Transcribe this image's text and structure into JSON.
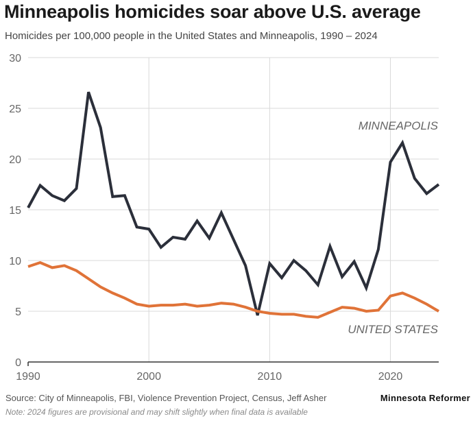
{
  "header": {
    "title": "Minneapolis homicides soar above U.S. average",
    "subtitle": "Homicides per 100,000 people in the United States and Minneapolis, 1990 – 2024"
  },
  "footer": {
    "source": "Source: City of Minneapolis, FBI, Violence Prevention Project, Census, Jeff Asher",
    "note": "Note: 2024 figures are provisional and may shift slightly when final data is available",
    "brand": "Minnesota Reformer"
  },
  "colors": {
    "minneapolis": "#2b2f3a",
    "united_states": "#e07338",
    "grid": "#d9d9d9",
    "axis": "#333333",
    "tick_text": "#666666"
  },
  "chart_data": {
    "type": "line",
    "title": "Minneapolis homicides soar above U.S. average",
    "subtitle": "Homicides per 100,000 people in the United States and Minneapolis, 1990 – 2024",
    "xlabel": "",
    "ylabel": "",
    "xlim": [
      1990,
      2024
    ],
    "ylim": [
      0,
      30
    ],
    "grid": true,
    "x_ticks": [
      "1990",
      "2000",
      "2010",
      "2020"
    ],
    "y_ticks": [
      "0",
      "5",
      "10",
      "15",
      "20",
      "25",
      "30"
    ],
    "x": [
      1990,
      1991,
      1992,
      1993,
      1994,
      1995,
      1996,
      1997,
      1998,
      1999,
      2000,
      2001,
      2002,
      2003,
      2004,
      2005,
      2006,
      2007,
      2008,
      2009,
      2010,
      2011,
      2012,
      2013,
      2014,
      2015,
      2016,
      2017,
      2018,
      2019,
      2020,
      2021,
      2022,
      2023,
      2024
    ],
    "series": [
      {
        "name": "MINNEAPOLIS",
        "values": [
          15.2,
          17.4,
          16.4,
          15.9,
          17.1,
          26.6,
          23.1,
          16.3,
          16.4,
          13.3,
          13.1,
          11.3,
          12.3,
          12.1,
          13.9,
          12.2,
          14.7,
          12.1,
          9.5,
          4.6,
          9.7,
          8.3,
          10.0,
          9.0,
          7.6,
          11.4,
          8.4,
          9.9,
          7.3,
          11.1,
          19.7,
          21.6,
          18.1,
          16.6,
          17.5
        ]
      },
      {
        "name": "UNITED STATES",
        "values": [
          9.4,
          9.8,
          9.3,
          9.5,
          9.0,
          8.2,
          7.4,
          6.8,
          6.3,
          5.7,
          5.5,
          5.6,
          5.6,
          5.7,
          5.5,
          5.6,
          5.8,
          5.7,
          5.4,
          5.0,
          4.8,
          4.7,
          4.7,
          4.5,
          4.4,
          4.9,
          5.4,
          5.3,
          5.0,
          5.1,
          6.5,
          6.8,
          6.3,
          5.7,
          5.0
        ]
      }
    ],
    "annotations": [
      "MINNEAPOLIS",
      "UNITED STATES"
    ]
  }
}
